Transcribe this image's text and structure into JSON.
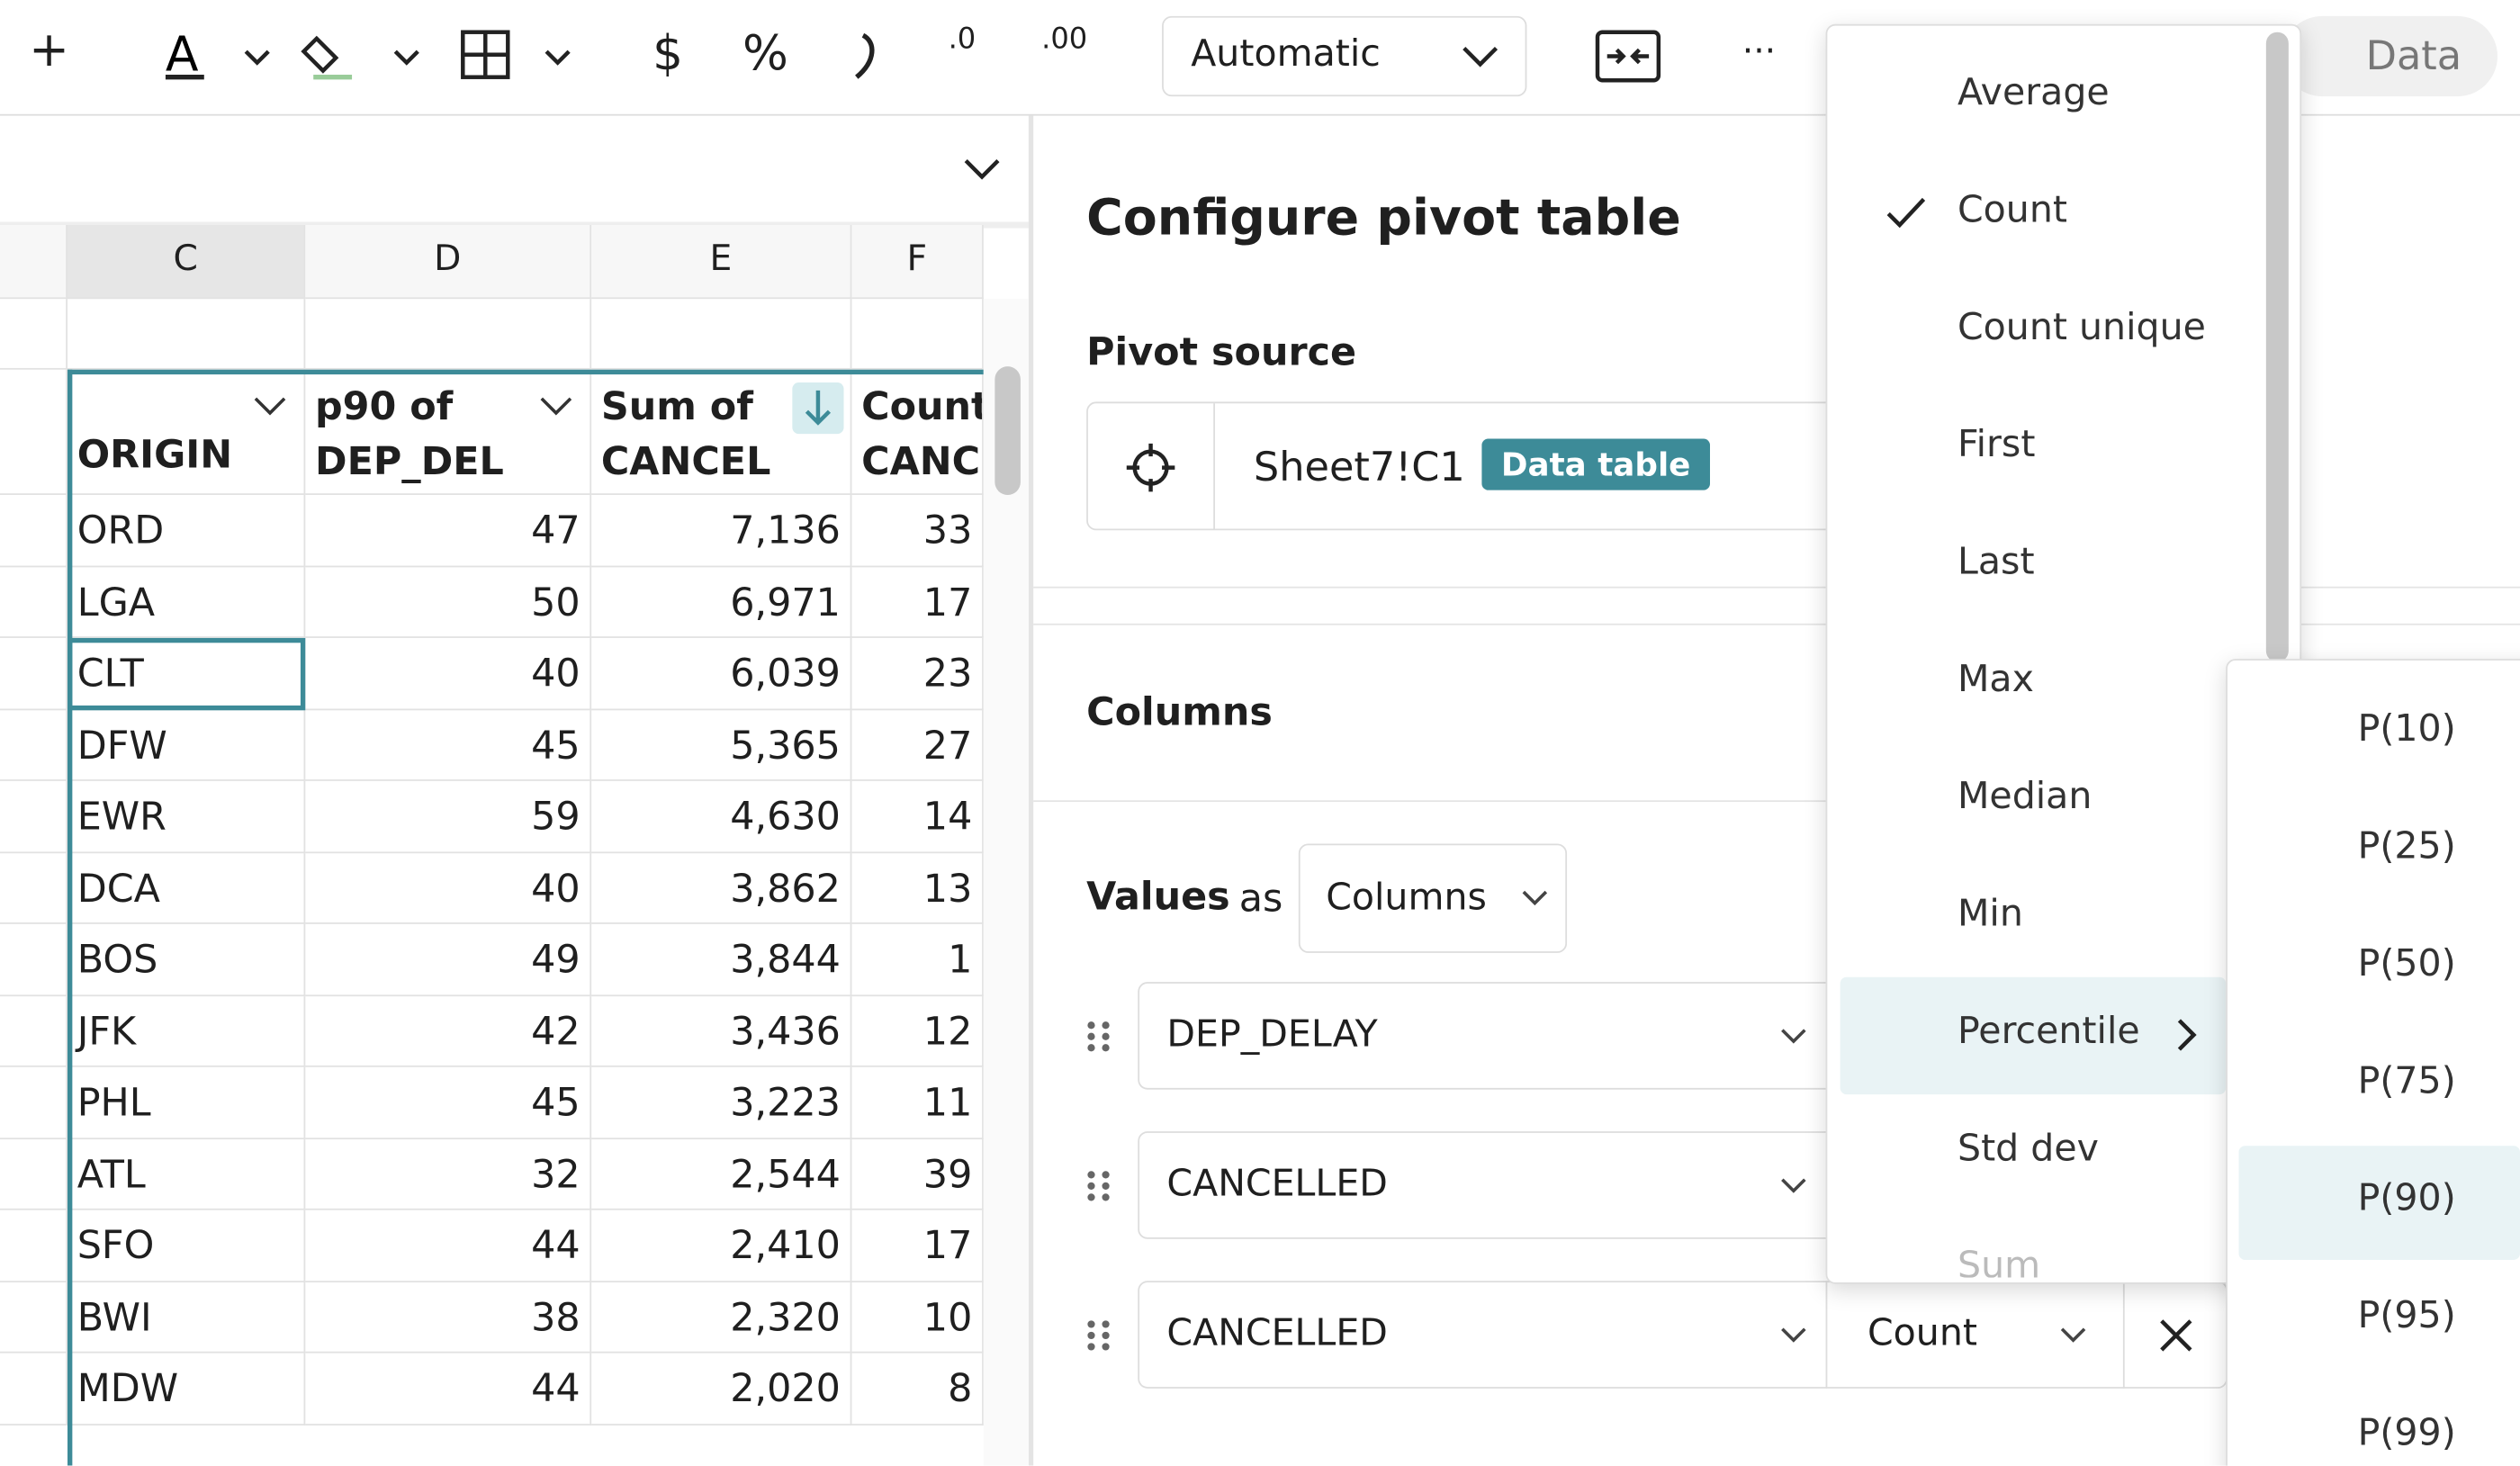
{
  "toolbar": {
    "add": "+",
    "currency": "$",
    "percent": "%",
    "decrease_decimals": ".0",
    "increase_decimals": ".00",
    "format": "Automatic",
    "more": "···",
    "data": "Data"
  },
  "sheet": {
    "columns": [
      "C",
      "D",
      "E",
      "F"
    ],
    "headers": [
      [
        "ORIGIN"
      ],
      [
        "p90 of",
        "DEP_DEL"
      ],
      [
        "Sum of",
        "CANCEL"
      ],
      [
        "Count",
        "CANC"
      ]
    ],
    "rows": [
      [
        "ORD",
        "47",
        "7,136",
        "33"
      ],
      [
        "LGA",
        "50",
        "6,971",
        "17"
      ],
      [
        "CLT",
        "40",
        "6,039",
        "23"
      ],
      [
        "DFW",
        "45",
        "5,365",
        "27"
      ],
      [
        "EWR",
        "59",
        "4,630",
        "14"
      ],
      [
        "DCA",
        "40",
        "3,862",
        "13"
      ],
      [
        "BOS",
        "49",
        "3,844",
        "1"
      ],
      [
        "JFK",
        "42",
        "3,436",
        "12"
      ],
      [
        "PHL",
        "45",
        "3,223",
        "11"
      ],
      [
        "ATL",
        "32",
        "2,544",
        "39"
      ],
      [
        "SFO",
        "44",
        "2,410",
        "17"
      ],
      [
        "BWI",
        "38",
        "2,320",
        "10"
      ],
      [
        "MDW",
        "44",
        "2,020",
        "8"
      ]
    ]
  },
  "panel": {
    "title": "Configure pivot table",
    "source_label": "Pivot source",
    "source": "Sheet7!C1",
    "source_badge": "Data table",
    "columns_label": "Columns",
    "values_label": "Values",
    "values_as": "as",
    "values_as_option": "Columns",
    "value_fields": [
      {
        "field": "DEP_DELAY"
      },
      {
        "field": "CANCELLED"
      },
      {
        "field": "CANCELLED",
        "aggregation": "Count"
      }
    ]
  },
  "menu": {
    "items": [
      "Average",
      "Count",
      "Count unique",
      "First",
      "Last",
      "Max",
      "Median",
      "Min",
      "Percentile",
      "Std dev",
      "Sum"
    ],
    "checked": "Count",
    "highlighted": "Percentile"
  },
  "submenu": {
    "items": [
      "P(10)",
      "P(25)",
      "P(50)",
      "P(75)",
      "P(90)",
      "P(95)",
      "P(99)"
    ],
    "highlighted": "P(90)"
  }
}
